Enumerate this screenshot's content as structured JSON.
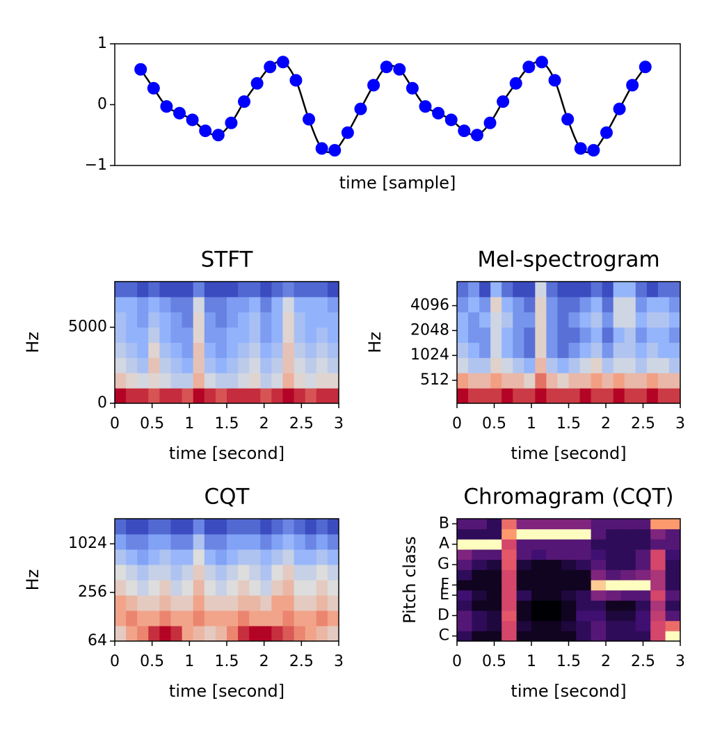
{
  "chart_data": [
    {
      "type": "line",
      "xlabel": "time [sample]",
      "x": [
        0,
        1,
        2,
        3,
        4,
        5,
        6,
        7,
        8,
        9,
        10,
        11,
        12,
        13,
        14,
        15,
        16,
        17,
        18,
        19,
        20,
        21,
        22,
        23,
        24,
        25,
        26,
        27,
        28,
        29,
        30,
        31,
        32,
        33,
        34,
        35,
        36,
        37,
        38,
        39
      ],
      "xlim": [
        -2,
        41.7
      ],
      "ylim": [
        -1,
        1
      ],
      "yticks": [
        {
          "value": -1,
          "label": "−1"
        },
        0,
        1
      ],
      "series": [
        {
          "color": "#000000",
          "marker_color": "#0000ff",
          "values": [
            0.58,
            0.27,
            -0.03,
            -0.14,
            -0.25,
            -0.43,
            -0.5,
            -0.3,
            0.05,
            0.35,
            0.62,
            0.7,
            0.4,
            -0.24,
            -0.72,
            -0.75,
            -0.46,
            -0.07,
            0.32,
            0.62,
            0.58,
            0.27,
            -0.03,
            -0.14,
            -0.25,
            -0.43,
            -0.5,
            -0.3,
            0.05,
            0.35,
            0.62,
            0.7,
            0.4,
            -0.24,
            -0.72,
            -0.75,
            -0.46,
            -0.07,
            0.32,
            0.62
          ]
        }
      ]
    },
    {
      "type": "heatmap",
      "title": "STFT",
      "xlabel": "time [second]",
      "ylabel": "Hz",
      "colormap": "coolwarm",
      "xlim": [
        0,
        3
      ],
      "xticks": [
        0,
        0.5,
        1,
        1.5,
        2,
        2.5,
        3
      ],
      "ylim": [
        0,
        8000
      ],
      "yticks": [
        0,
        5000
      ],
      "z": [
        [
          0.85,
          0.8,
          0.8,
          0.75,
          0.8,
          0.8,
          0.75,
          0.85,
          0.8,
          0.75,
          0.8,
          0.8,
          0.8,
          0.75,
          0.8,
          0.85,
          0.8,
          0.75,
          0.8,
          0.8
        ],
        [
          0.55,
          0.5,
          0.45,
          0.5,
          0.45,
          0.4,
          0.4,
          0.6,
          0.45,
          0.4,
          0.4,
          0.45,
          0.5,
          0.4,
          0.45,
          0.6,
          0.5,
          0.45,
          0.5,
          0.5
        ],
        [
          0.45,
          0.4,
          0.35,
          0.55,
          0.4,
          0.35,
          0.3,
          0.55,
          0.35,
          0.3,
          0.35,
          0.4,
          0.45,
          0.35,
          0.4,
          0.55,
          0.45,
          0.4,
          0.45,
          0.4
        ],
        [
          0.4,
          0.35,
          0.3,
          0.5,
          0.35,
          0.3,
          0.25,
          0.55,
          0.3,
          0.25,
          0.3,
          0.35,
          0.4,
          0.3,
          0.35,
          0.55,
          0.4,
          0.35,
          0.4,
          0.35
        ],
        [
          0.35,
          0.3,
          0.3,
          0.4,
          0.3,
          0.25,
          0.25,
          0.5,
          0.25,
          0.25,
          0.3,
          0.3,
          0.35,
          0.25,
          0.3,
          0.5,
          0.35,
          0.3,
          0.35,
          0.3
        ],
        [
          0.35,
          0.3,
          0.25,
          0.35,
          0.3,
          0.25,
          0.2,
          0.5,
          0.25,
          0.2,
          0.25,
          0.3,
          0.35,
          0.25,
          0.3,
          0.5,
          0.35,
          0.3,
          0.3,
          0.3
        ],
        [
          0.3,
          0.3,
          0.25,
          0.3,
          0.25,
          0.2,
          0.2,
          0.45,
          0.2,
          0.2,
          0.25,
          0.25,
          0.3,
          0.2,
          0.3,
          0.45,
          0.3,
          0.3,
          0.3,
          0.25
        ],
        [
          0.15,
          0.15,
          0.1,
          0.15,
          0.1,
          0.1,
          0.1,
          0.2,
          0.1,
          0.1,
          0.1,
          0.15,
          0.15,
          0.1,
          0.15,
          0.2,
          0.15,
          0.15,
          0.15,
          0.1
        ]
      ]
    },
    {
      "type": "heatmap",
      "title": "Mel-spectrogram",
      "xlabel": "time [second]",
      "ylabel": "Hz",
      "colormap": "coolwarm",
      "xlim": [
        0,
        3
      ],
      "xticks": [
        0,
        0.5,
        1,
        1.5,
        2,
        2.5,
        3
      ],
      "yscale": "log",
      "ylim": [
        270,
        8000
      ],
      "yticks": [
        512,
        1024,
        2048,
        4096
      ],
      "z": [
        [
          0.9,
          0.85,
          0.85,
          0.85,
          0.9,
          0.85,
          0.85,
          0.9,
          0.85,
          0.85,
          0.85,
          0.9,
          0.85,
          0.85,
          0.9,
          0.85,
          0.85,
          0.9,
          0.85,
          0.85
        ],
        [
          0.75,
          0.7,
          0.7,
          0.75,
          0.7,
          0.7,
          0.65,
          0.8,
          0.7,
          0.65,
          0.7,
          0.7,
          0.75,
          0.7,
          0.75,
          0.7,
          0.7,
          0.75,
          0.7,
          0.7
        ],
        [
          0.6,
          0.55,
          0.55,
          0.65,
          0.6,
          0.55,
          0.5,
          0.7,
          0.55,
          0.5,
          0.55,
          0.6,
          0.65,
          0.55,
          0.6,
          0.6,
          0.55,
          0.6,
          0.6,
          0.55
        ],
        [
          0.55,
          0.5,
          0.45,
          0.6,
          0.5,
          0.45,
          0.4,
          0.65,
          0.45,
          0.4,
          0.45,
          0.5,
          0.55,
          0.45,
          0.55,
          0.55,
          0.5,
          0.55,
          0.5,
          0.5
        ],
        [
          0.5,
          0.45,
          0.45,
          0.6,
          0.5,
          0.45,
          0.4,
          0.65,
          0.45,
          0.4,
          0.4,
          0.45,
          0.5,
          0.4,
          0.5,
          0.55,
          0.45,
          0.5,
          0.5,
          0.45
        ],
        [
          0.5,
          0.45,
          0.5,
          0.6,
          0.55,
          0.45,
          0.45,
          0.65,
          0.45,
          0.4,
          0.45,
          0.5,
          0.55,
          0.45,
          0.6,
          0.6,
          0.5,
          0.55,
          0.55,
          0.5
        ],
        [
          0.45,
          0.5,
          0.45,
          0.65,
          0.5,
          0.45,
          0.4,
          0.65,
          0.45,
          0.4,
          0.4,
          0.45,
          0.5,
          0.4,
          0.6,
          0.6,
          0.45,
          0.5,
          0.5,
          0.45
        ],
        [
          0.4,
          0.45,
          0.35,
          0.5,
          0.4,
          0.35,
          0.35,
          0.6,
          0.4,
          0.35,
          0.35,
          0.35,
          0.4,
          0.35,
          0.5,
          0.5,
          0.4,
          0.35,
          0.4,
          0.4
        ]
      ]
    },
    {
      "type": "heatmap",
      "title": "CQT",
      "xlabel": "time [second]",
      "ylabel": "Hz",
      "colormap": "coolwarm",
      "xlim": [
        0,
        3
      ],
      "xticks": [
        0,
        0.5,
        1,
        1.5,
        2,
        2.5,
        3
      ],
      "yscale": "log",
      "ylim": [
        64,
        2093
      ],
      "yticks": [
        64,
        256,
        1024
      ],
      "z": [
        [
          0.6,
          0.7,
          0.75,
          0.85,
          0.9,
          0.85,
          0.7,
          0.65,
          0.6,
          0.65,
          0.75,
          0.85,
          0.9,
          0.9,
          0.85,
          0.8,
          0.75,
          0.7,
          0.65,
          0.6
        ],
        [
          0.7,
          0.75,
          0.7,
          0.7,
          0.75,
          0.7,
          0.7,
          0.75,
          0.7,
          0.7,
          0.7,
          0.75,
          0.7,
          0.7,
          0.7,
          0.75,
          0.7,
          0.7,
          0.75,
          0.7
        ],
        [
          0.7,
          0.65,
          0.6,
          0.6,
          0.65,
          0.6,
          0.6,
          0.7,
          0.6,
          0.6,
          0.6,
          0.65,
          0.65,
          0.6,
          0.7,
          0.7,
          0.6,
          0.6,
          0.65,
          0.6
        ],
        [
          0.6,
          0.55,
          0.5,
          0.55,
          0.6,
          0.5,
          0.55,
          0.65,
          0.55,
          0.5,
          0.55,
          0.6,
          0.55,
          0.5,
          0.6,
          0.65,
          0.55,
          0.55,
          0.6,
          0.55
        ],
        [
          0.55,
          0.5,
          0.45,
          0.5,
          0.5,
          0.45,
          0.5,
          0.6,
          0.5,
          0.45,
          0.5,
          0.55,
          0.5,
          0.45,
          0.55,
          0.6,
          0.5,
          0.5,
          0.55,
          0.5
        ],
        [
          0.45,
          0.4,
          0.35,
          0.4,
          0.45,
          0.4,
          0.4,
          0.55,
          0.4,
          0.35,
          0.4,
          0.45,
          0.45,
          0.4,
          0.45,
          0.5,
          0.4,
          0.4,
          0.45,
          0.4
        ],
        [
          0.35,
          0.3,
          0.3,
          0.35,
          0.35,
          0.3,
          0.3,
          0.45,
          0.3,
          0.3,
          0.35,
          0.35,
          0.35,
          0.3,
          0.35,
          0.4,
          0.35,
          0.3,
          0.35,
          0.3
        ],
        [
          0.25,
          0.2,
          0.2,
          0.25,
          0.25,
          0.2,
          0.2,
          0.3,
          0.2,
          0.2,
          0.25,
          0.25,
          0.25,
          0.2,
          0.25,
          0.3,
          0.25,
          0.2,
          0.25,
          0.2
        ]
      ]
    },
    {
      "type": "heatmap",
      "title": "Chromagram (CQT)",
      "xlabel": "time [second]",
      "ylabel": "Pitch class",
      "colormap": "magma",
      "xlim": [
        0,
        3
      ],
      "xticks": [
        0,
        0.5,
        1,
        1.5,
        2,
        2.5,
        3
      ],
      "ylim": [
        -0.5,
        11.5
      ],
      "yticks": [
        {
          "value": 0,
          "label": "C"
        },
        {
          "value": 2,
          "label": "D"
        },
        {
          "value": 4,
          "label": "E"
        },
        {
          "value": 5,
          "label": "F"
        },
        {
          "value": 7,
          "label": "G"
        },
        {
          "value": 9,
          "label": "A"
        },
        {
          "value": 11,
          "label": "B"
        }
      ],
      "z": [
        [
          0.2,
          0.1,
          0.1,
          0.6,
          0.1,
          0.1,
          0.1,
          0.1,
          0.2,
          0.3,
          0.2,
          0.2,
          0.2,
          0.6,
          1
        ],
        [
          0.3,
          0.2,
          0.15,
          0.6,
          0.15,
          0.1,
          0.1,
          0.15,
          0.2,
          0.3,
          0.2,
          0.2,
          0.25,
          0.6,
          0.7
        ],
        [
          0.3,
          0.2,
          0.15,
          0.65,
          0.1,
          0.05,
          0.05,
          0.1,
          0.25,
          0.25,
          0.15,
          0.15,
          0.25,
          0.55,
          0.3
        ],
        [
          0.2,
          0.1,
          0.1,
          0.6,
          0.1,
          0.05,
          0.05,
          0.1,
          0.2,
          0.2,
          0.1,
          0.1,
          0.2,
          0.5,
          0.2
        ],
        [
          0.25,
          0.15,
          0.1,
          0.6,
          0.2,
          0.1,
          0.1,
          0.15,
          0.2,
          0.4,
          0.35,
          0.3,
          0.3,
          0.6,
          0.3
        ],
        [
          0.1,
          0.1,
          0.1,
          0.6,
          0.1,
          0.1,
          0.1,
          0.1,
          0.1,
          0.9,
          1,
          1,
          1,
          0.5,
          0.2
        ],
        [
          0.2,
          0.1,
          0.1,
          0.6,
          0.1,
          0.1,
          0.1,
          0.1,
          0.1,
          0.4,
          0.3,
          0.35,
          0.4,
          0.5,
          0.2
        ],
        [
          0.3,
          0.2,
          0.15,
          0.65,
          0.15,
          0.1,
          0.1,
          0.15,
          0.2,
          0.3,
          0.2,
          0.2,
          0.3,
          0.6,
          0.2
        ],
        [
          0.4,
          0.3,
          0.3,
          0.65,
          0.3,
          0.25,
          0.3,
          0.3,
          0.3,
          0.25,
          0.2,
          0.2,
          0.3,
          0.6,
          0.25
        ],
        [
          1,
          1,
          1,
          0.6,
          0.3,
          0.3,
          0.3,
          0.3,
          0.3,
          0.2,
          0.2,
          0.2,
          0.2,
          0.3,
          0.3
        ],
        [
          0.2,
          0.2,
          0.2,
          0.8,
          1,
          1,
          1,
          1,
          1,
          0.3,
          0.2,
          0.2,
          0.2,
          0.4,
          0.3
        ],
        [
          0.3,
          0.3,
          0.2,
          0.7,
          0.4,
          0.4,
          0.4,
          0.4,
          0.4,
          0.3,
          0.3,
          0.3,
          0.3,
          0.8,
          0.8
        ]
      ]
    }
  ]
}
